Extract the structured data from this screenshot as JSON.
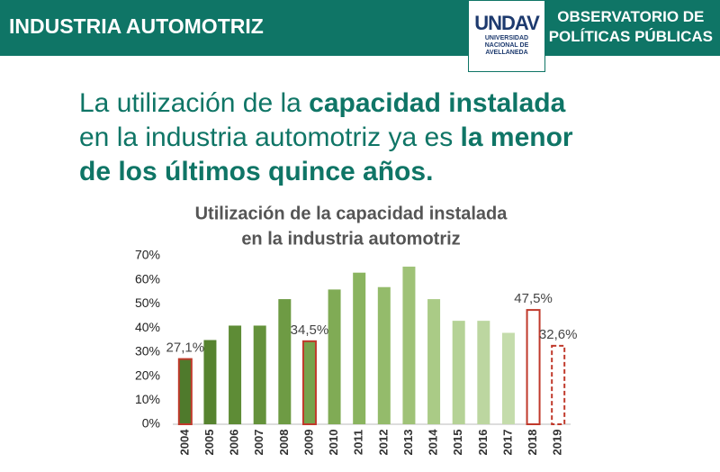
{
  "header": {
    "section": "INDUSTRIA AUTOMOTRIZ",
    "logo": "UNDAV",
    "university": [
      "UNIVERSIDAD",
      "NACIONAL DE",
      "AVELLANEDA"
    ],
    "observatory": [
      "OBSERVATORIO DE",
      "POLÍTICAS PÚBLICAS"
    ]
  },
  "headline": [
    "La utilización de la ",
    "capacidad instalada",
    "en la industria automotriz ya es ",
    "la menor",
    "de los últimos quince años."
  ],
  "chart_data": {
    "type": "bar",
    "title": [
      "Utilización de la capacidad instalada",
      "en la industria automotriz"
    ],
    "categories": [
      "2004",
      "2005",
      "2006",
      "2007",
      "2008",
      "2009",
      "2010",
      "2011",
      "2012",
      "2013",
      "2014",
      "2015",
      "2016",
      "2017",
      "2018",
      "2019"
    ],
    "values": [
      27.1,
      35,
      41,
      41,
      52,
      34.5,
      56,
      63,
      57,
      65.5,
      52,
      43,
      43,
      38,
      47.5,
      32.6
    ],
    "value_labels": [
      "27,1%",
      null,
      null,
      null,
      null,
      "34,5%",
      null,
      null,
      null,
      null,
      null,
      null,
      null,
      null,
      "47,5%",
      "32,6%"
    ],
    "colors": [
      "#4f7a2c",
      "#56832f",
      "#5e8c36",
      "#64923b",
      "#6e9b44",
      "#77a34c",
      "#80ab55",
      "#8ab45f",
      "#94bb6b",
      "#9fc277",
      "#aacb86",
      "#b5d296",
      "#bcd6a0",
      "#c4dcab",
      "#ffffff",
      "#ffffff"
    ],
    "edge_colors": [
      "#c0392b",
      null,
      null,
      null,
      null,
      "#c0392b",
      null,
      null,
      null,
      null,
      null,
      null,
      null,
      null,
      "#c0392b",
      "#c0392b"
    ],
    "edge_styles": [
      "solid",
      null,
      null,
      null,
      null,
      "solid",
      null,
      null,
      null,
      null,
      null,
      null,
      null,
      null,
      "solid",
      "dashed"
    ],
    "ylim": [
      0,
      70
    ],
    "yticks": [
      {
        "value": 0,
        "label": "0%"
      },
      {
        "value": 10,
        "label": "10%"
      },
      {
        "value": 20,
        "label": "20%"
      },
      {
        "value": 30,
        "label": "30%"
      },
      {
        "value": 40,
        "label": "40%"
      },
      {
        "value": 50,
        "label": "50%"
      },
      {
        "value": 60,
        "label": "60%"
      },
      {
        "value": 70,
        "label": "70%"
      }
    ],
    "grid": false
  }
}
